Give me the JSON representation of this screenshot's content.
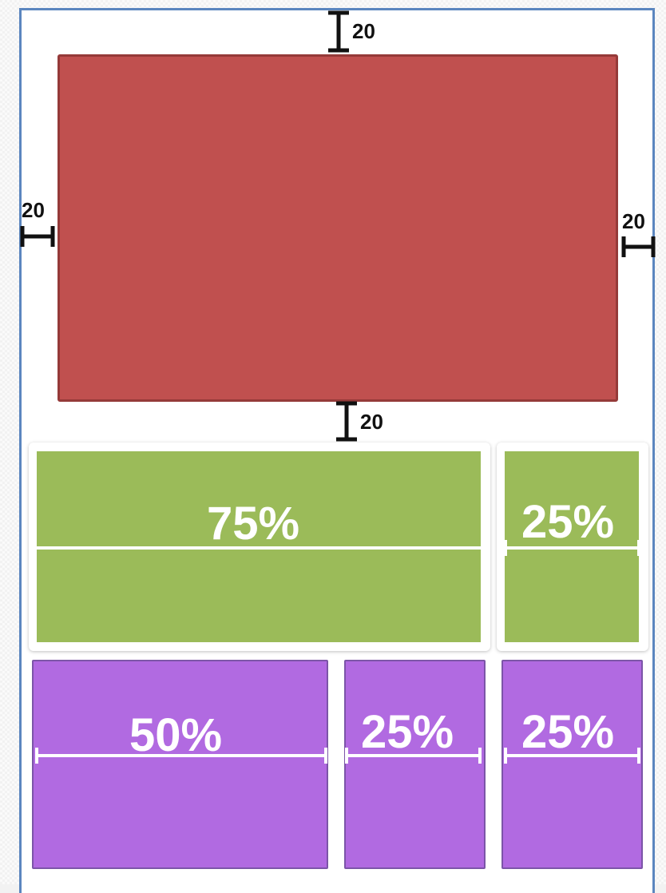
{
  "margins": {
    "top": "20",
    "bottom": "20",
    "left": "20",
    "right": "20"
  },
  "row1": [
    {
      "label": "75%",
      "fraction": 0.75
    },
    {
      "label": "25%",
      "fraction": 0.25
    }
  ],
  "row2": [
    {
      "label": "50%",
      "fraction": 0.5
    },
    {
      "label": "25%",
      "fraction": 0.25
    },
    {
      "label": "25%",
      "fraction": 0.25
    }
  ],
  "colors": {
    "frame_border": "#5b86bf",
    "red_box": "#c0504f",
    "green_box": "#9bbb59",
    "purple_box": "#b16ae1"
  }
}
